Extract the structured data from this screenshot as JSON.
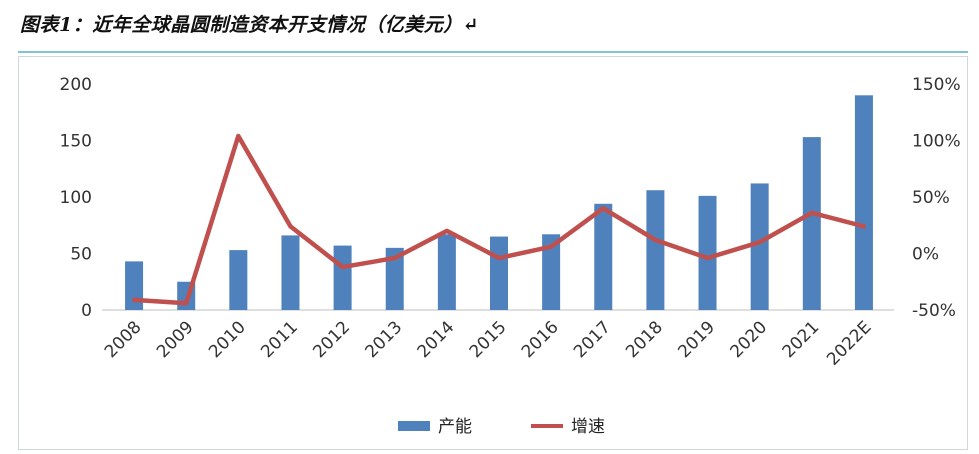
{
  "figure": {
    "title": "图表1：近年全球晶圆制造资本开支情况（亿美元）↵"
  },
  "chart_data": {
    "type": "bar",
    "categories": [
      "2008",
      "2009",
      "2010",
      "2011",
      "2012",
      "2013",
      "2014",
      "2015",
      "2016",
      "2017",
      "2018",
      "2019",
      "2020",
      "2021",
      "2022E"
    ],
    "series": [
      {
        "name": "产能",
        "type": "bar",
        "axis": "left",
        "values": [
          43,
          25,
          53,
          66,
          57,
          55,
          67,
          65,
          67,
          94,
          106,
          101,
          112,
          153,
          190
        ]
      },
      {
        "name": "增速",
        "type": "line",
        "axis": "right",
        "values": [
          -41,
          -44,
          104,
          24,
          -12,
          -4,
          20,
          -4,
          6,
          40,
          12,
          -4,
          10,
          36,
          24
        ]
      }
    ],
    "y_left": {
      "min": 0,
      "max": 200,
      "ticks": [
        0,
        50,
        100,
        150,
        200
      ]
    },
    "y_right": {
      "min": -50,
      "max": 150,
      "ticks": [
        "-50%",
        "0%",
        "50%",
        "100%",
        "150%"
      ]
    },
    "grid": false,
    "legend_position": "bottom-center",
    "colors": {
      "bar": "#4f81bd",
      "line": "#c0504d"
    }
  }
}
